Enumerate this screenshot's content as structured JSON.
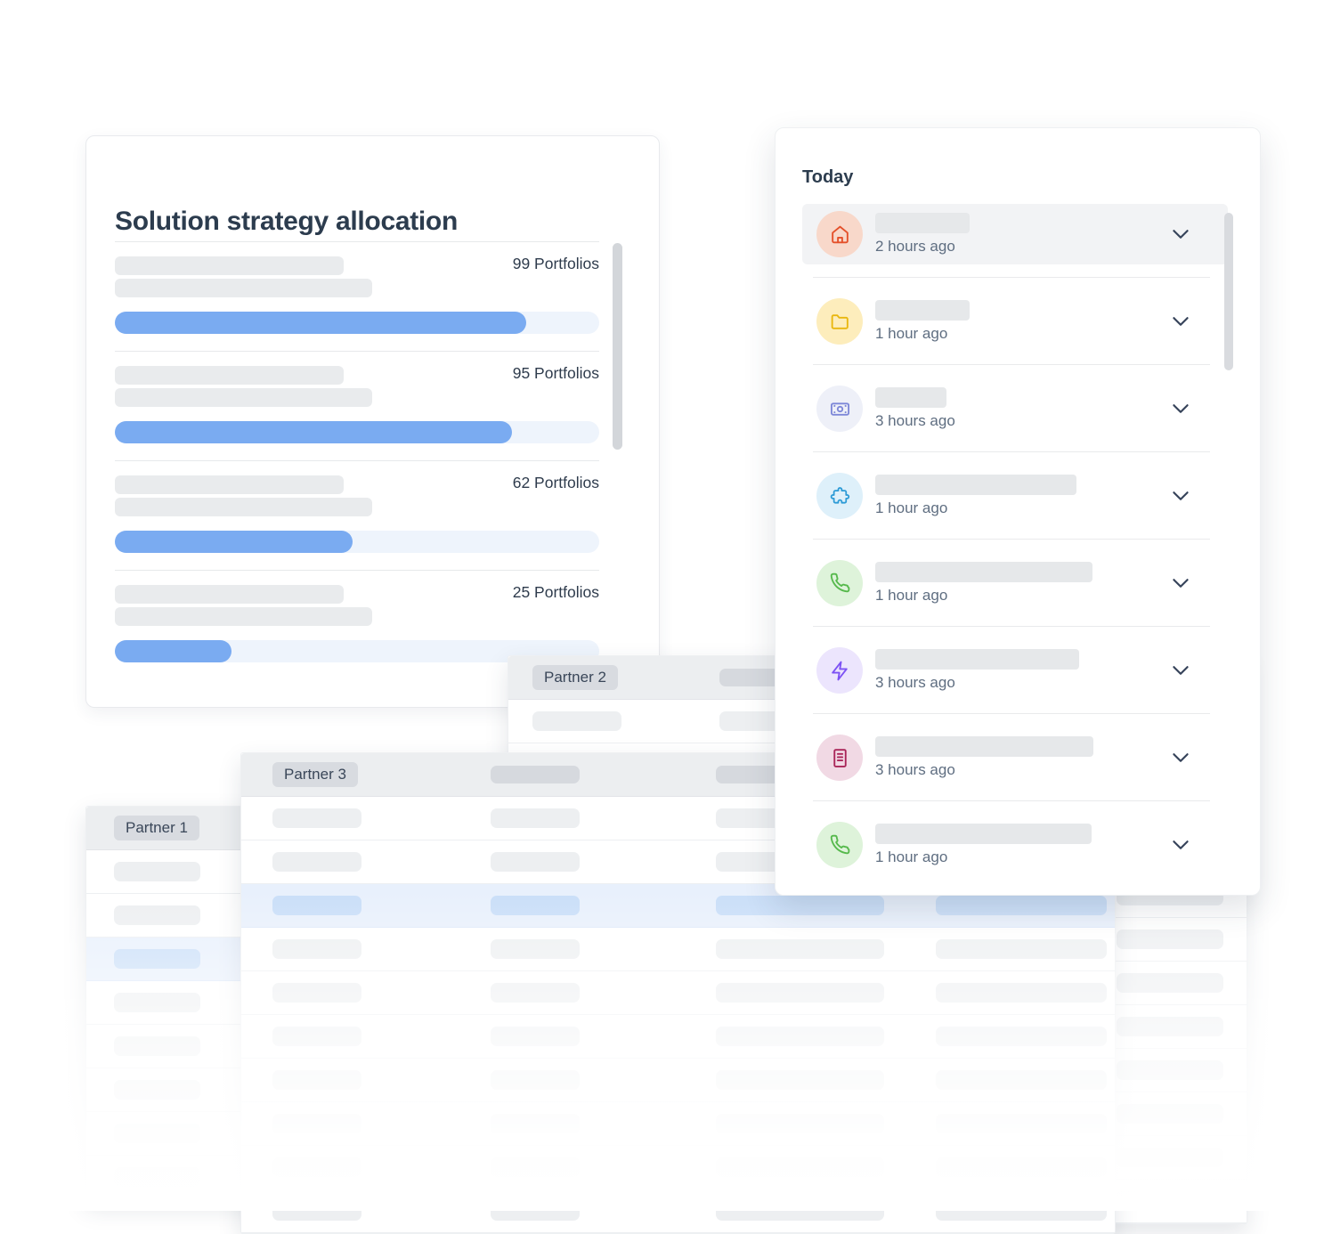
{
  "page": {
    "background": "#ffffff"
  },
  "allocation_card": {
    "title": "Solution strategy allocation",
    "rows": [
      {
        "label": "99 Portfolios",
        "portfolios": 99,
        "fill_pct": 85
      },
      {
        "label": "95 Portfolios",
        "portfolios": 95,
        "fill_pct": 82
      },
      {
        "label": "62 Portfolios",
        "portfolios": 62,
        "fill_pct": 49
      },
      {
        "label": "25 Portfolios",
        "portfolios": 25,
        "fill_pct": 24
      }
    ],
    "bar_fill_color": "#7aabf1",
    "bar_track_color": "#eef4fc"
  },
  "today_panel": {
    "title": "Today",
    "items": [
      {
        "icon": "home-icon",
        "time": "2 hours ago",
        "highlighted": true,
        "skeleton_width": 106,
        "icon_color": "#e4502a",
        "icon_bg": "#f8d8ca"
      },
      {
        "icon": "folder-icon",
        "time": "1 hour ago",
        "highlighted": false,
        "skeleton_width": 106,
        "icon_color": "#e9b70f",
        "icon_bg": "#fdedbc"
      },
      {
        "icon": "banknote-icon",
        "time": "3 hours ago",
        "highlighted": false,
        "skeleton_width": 80,
        "icon_color": "#7e88d8",
        "icon_bg": "#eef0f8"
      },
      {
        "icon": "puzzle-icon",
        "time": "1 hour ago",
        "highlighted": false,
        "skeleton_width": 226,
        "icon_color": "#2d9bd6",
        "icon_bg": "#def0fa"
      },
      {
        "icon": "phone-icon",
        "time": "1 hour ago",
        "highlighted": false,
        "skeleton_width": 244,
        "icon_color": "#56b94c",
        "icon_bg": "#def3da"
      },
      {
        "icon": "lightning-icon",
        "time": "3 hours ago",
        "highlighted": false,
        "skeleton_width": 229,
        "icon_color": "#7d52f4",
        "icon_bg": "#ece5fd"
      },
      {
        "icon": "document-icon",
        "time": "3 hours ago",
        "highlighted": false,
        "skeleton_width": 245,
        "icon_color": "#a92558",
        "icon_bg": "#f1d9e4"
      },
      {
        "icon": "phone-icon",
        "time": "1 hour ago",
        "highlighted": false,
        "skeleton_width": 243,
        "icon_color": "#56b94c",
        "icon_bg": "#def3da"
      }
    ]
  },
  "tables": {
    "partner1": {
      "label": "Partner 1"
    },
    "partner2": {
      "label": "Partner 2"
    },
    "partner3": {
      "label": "Partner 3"
    }
  },
  "colors": {
    "accent_blue": "#7aabf1",
    "selected_row_bg": "#e8f0fc",
    "selected_row_pill": "#c9def8",
    "skeleton": "#e9ebed",
    "table_header_bg": "#eceef0",
    "badge_bg": "#d8dbe0",
    "text_dark": "#2c3c4e",
    "text_muted": "#5f6e81",
    "divider": "#e9eaec",
    "scrollbar": "#d3d6da"
  }
}
